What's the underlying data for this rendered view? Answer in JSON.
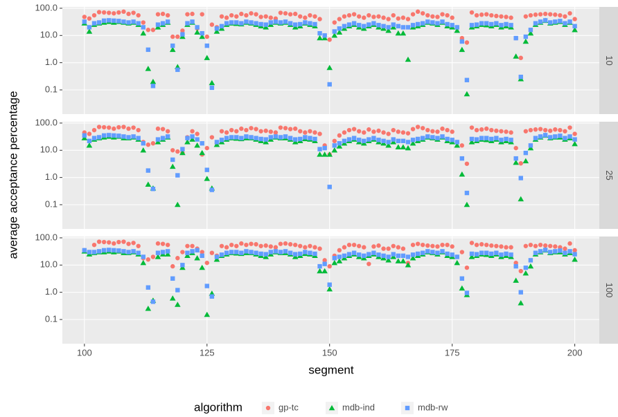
{
  "chart_data": {
    "type": "scatter",
    "xlabel": "segment",
    "ylabel": "average acceptance percentage",
    "legend_title": "algorithm",
    "legend_position": "bottom",
    "log_y": true,
    "grid": true,
    "x": [
      100,
      101,
      102,
      103,
      104,
      105,
      106,
      107,
      108,
      109,
      110,
      111,
      112,
      113,
      114,
      115,
      116,
      117,
      118,
      119,
      120,
      121,
      122,
      123,
      124,
      125,
      126,
      127,
      128,
      129,
      130,
      131,
      132,
      133,
      134,
      135,
      136,
      137,
      138,
      139,
      140,
      141,
      142,
      143,
      144,
      145,
      146,
      147,
      148,
      149,
      150,
      151,
      152,
      153,
      154,
      155,
      156,
      157,
      158,
      159,
      160,
      161,
      162,
      163,
      164,
      165,
      166,
      167,
      168,
      169,
      170,
      171,
      172,
      173,
      174,
      175,
      176,
      177,
      178,
      179,
      180,
      181,
      182,
      183,
      184,
      185,
      186,
      187,
      188,
      189,
      190,
      191,
      192,
      193,
      194,
      195,
      196,
      197,
      198,
      199,
      200
    ],
    "xlim": [
      95.5,
      205
    ],
    "xticks": [
      100,
      125,
      150,
      175,
      200
    ],
    "ylim": [
      0.0129,
      112
    ],
    "yticks": [
      0.1,
      {
        "value": 1,
        "label": "1.0"
      },
      {
        "value": 10,
        "label": "10.0"
      },
      {
        "value": 100,
        "label": "100.0"
      }
    ],
    "series": [
      {
        "name": "gp-tc",
        "color": "#F8766D",
        "marker": "circle"
      },
      {
        "name": "mdb-ind",
        "color": "#00BA38",
        "marker": "triangle"
      },
      {
        "name": "mdb-rw",
        "color": "#619CFF",
        "marker": "square"
      }
    ],
    "facets": [
      {
        "label": "10",
        "values": [
          [
            48,
            42,
            55,
            72,
            70,
            68,
            65,
            70,
            75,
            62,
            68,
            55,
            30,
            16,
            16,
            60,
            62,
            55,
            9,
            9,
            15,
            60,
            62,
            18,
            60,
            9,
            25,
            20,
            50,
            45,
            55,
            50,
            62,
            55,
            65,
            60,
            48,
            50,
            45,
            42,
            68,
            65,
            60,
            62,
            50,
            45,
            55,
            50,
            40,
            10,
            7,
            30,
            40,
            50,
            55,
            60,
            50,
            45,
            55,
            48,
            50,
            45,
            40,
            55,
            42,
            45,
            40,
            60,
            75,
            65,
            55,
            50,
            48,
            60,
            55,
            45,
            20,
            8,
            5.5,
            70,
            55,
            58,
            60,
            55,
            52,
            50,
            48,
            45,
            8,
            1.5,
            50,
            55,
            58,
            60,
            62,
            60,
            58,
            55,
            50,
            65,
            40
          ],
          [
            28,
            14,
            25,
            28,
            30,
            32,
            30,
            32,
            30,
            28,
            30,
            25,
            12,
            0.6,
            0.2,
            20,
            25,
            30,
            3,
            0.7,
            9,
            25,
            30,
            13,
            9,
            1.5,
            0.18,
            14,
            18,
            25,
            28,
            27,
            26,
            30,
            28,
            25,
            22,
            20,
            25,
            30,
            28,
            30,
            25,
            20,
            22,
            28,
            25,
            22,
            8,
            8,
            0.65,
            10,
            13,
            18,
            22,
            25,
            20,
            18,
            22,
            25,
            20,
            18,
            15,
            20,
            12,
            12,
            1.3,
            20,
            22,
            25,
            30,
            28,
            25,
            30,
            22,
            20,
            15,
            3,
            0.07,
            20,
            22,
            25,
            24,
            22,
            25,
            20,
            22,
            20,
            1.7,
            0.25,
            6,
            12,
            25,
            30,
            35,
            28,
            30,
            32,
            25,
            30,
            16
          ],
          [
            32,
            20,
            28,
            30,
            35,
            36,
            35,
            34,
            32,
            30,
            32,
            28,
            20,
            3,
            0.14,
            25,
            28,
            32,
            4.2,
            0.55,
            11,
            28,
            32,
            20,
            12,
            4.2,
            0.12,
            18,
            22,
            28,
            30,
            30,
            28,
            32,
            30,
            28,
            26,
            25,
            30,
            32,
            30,
            32,
            28,
            25,
            26,
            30,
            28,
            26,
            12,
            10,
            0.16,
            14,
            18,
            22,
            25,
            28,
            24,
            22,
            25,
            28,
            24,
            22,
            20,
            25,
            22,
            20,
            20,
            24,
            26,
            28,
            32,
            30,
            28,
            32,
            26,
            24,
            20,
            6,
            0.23,
            24,
            25,
            28,
            28,
            26,
            28,
            24,
            26,
            24,
            8,
            0.3,
            9,
            16,
            28,
            32,
            36,
            30,
            32,
            34,
            28,
            32,
            22
          ]
        ]
      },
      {
        "label": "25",
        "values": [
          [
            45,
            40,
            55,
            72,
            70,
            68,
            62,
            70,
            72,
            62,
            68,
            55,
            20,
            16,
            18,
            62,
            60,
            50,
            10,
            9,
            8,
            30,
            50,
            40,
            7,
            12,
            30,
            18,
            50,
            45,
            55,
            50,
            62,
            55,
            65,
            60,
            50,
            52,
            48,
            45,
            68,
            65,
            60,
            62,
            50,
            45,
            50,
            45,
            40,
            15,
            7,
            22,
            35,
            45,
            55,
            60,
            50,
            45,
            58,
            48,
            52,
            45,
            40,
            55,
            48,
            45,
            42,
            60,
            72,
            65,
            55,
            50,
            48,
            62,
            55,
            48,
            20,
            15,
            3.2,
            68,
            55,
            58,
            62,
            55,
            52,
            50,
            48,
            45,
            12,
            3.3,
            50,
            55,
            58,
            60,
            55,
            52,
            58,
            55,
            50,
            68,
            40
          ],
          [
            28,
            15,
            25,
            28,
            30,
            32,
            30,
            32,
            28,
            28,
            30,
            25,
            10,
            0.55,
            0.4,
            20,
            25,
            30,
            2.5,
            0.1,
            8,
            20,
            25,
            15,
            8,
            0.9,
            0.4,
            16,
            20,
            25,
            28,
            27,
            26,
            28,
            28,
            25,
            22,
            20,
            25,
            30,
            28,
            28,
            25,
            20,
            22,
            26,
            25,
            22,
            7,
            7,
            7,
            10,
            14,
            18,
            22,
            25,
            20,
            18,
            22,
            25,
            20,
            18,
            15,
            20,
            13,
            13,
            12,
            18,
            22,
            25,
            30,
            28,
            25,
            30,
            22,
            20,
            15,
            1.3,
            0.1,
            20,
            22,
            25,
            24,
            22,
            25,
            20,
            22,
            20,
            3.5,
            0.16,
            4,
            12,
            25,
            30,
            35,
            28,
            30,
            30,
            25,
            28,
            17
          ],
          [
            35,
            22,
            28,
            30,
            35,
            36,
            35,
            34,
            32,
            30,
            32,
            28,
            18,
            1.8,
            0.38,
            25,
            28,
            32,
            4.5,
            1.2,
            11,
            28,
            32,
            25,
            18,
            1.9,
            0.35,
            20,
            24,
            28,
            30,
            30,
            28,
            32,
            30,
            28,
            26,
            25,
            30,
            32,
            30,
            32,
            28,
            25,
            26,
            30,
            28,
            26,
            11,
            12,
            0.45,
            15,
            18,
            22,
            25,
            28,
            24,
            22,
            25,
            28,
            24,
            22,
            20,
            25,
            22,
            22,
            20,
            24,
            26,
            28,
            32,
            30,
            28,
            32,
            26,
            24,
            20,
            5,
            0.27,
            26,
            25,
            28,
            28,
            26,
            28,
            24,
            26,
            24,
            5,
            0.95,
            8,
            15,
            28,
            32,
            36,
            30,
            32,
            34,
            28,
            32,
            25
          ]
        ]
      },
      {
        "label": "100",
        "values": [
          [
            35,
            30,
            55,
            72,
            70,
            68,
            62,
            70,
            72,
            60,
            65,
            50,
            18,
            16,
            20,
            62,
            60,
            55,
            9,
            18,
            30,
            50,
            50,
            40,
            30,
            12,
            28,
            22,
            50,
            45,
            55,
            50,
            62,
            55,
            60,
            58,
            50,
            52,
            48,
            45,
            60,
            62,
            58,
            55,
            50,
            45,
            50,
            45,
            40,
            15,
            9,
            22,
            35,
            45,
            55,
            55,
            50,
            45,
            11,
            48,
            52,
            40,
            40,
            50,
            45,
            40,
            12,
            55,
            60,
            55,
            52,
            50,
            48,
            55,
            55,
            48,
            20,
            30,
            8,
            65,
            55,
            58,
            55,
            52,
            50,
            48,
            45,
            45,
            12,
            6,
            50,
            55,
            50,
            55,
            52,
            50,
            48,
            45,
            40,
            62,
            35
          ],
          [
            32,
            25,
            28,
            30,
            30,
            32,
            30,
            32,
            28,
            28,
            30,
            25,
            12,
            0.25,
            0.5,
            20,
            25,
            25,
            0.6,
            0.35,
            8,
            22,
            28,
            18,
            8,
            0.15,
            0.9,
            16,
            22,
            25,
            28,
            27,
            26,
            28,
            28,
            25,
            22,
            20,
            25,
            30,
            28,
            28,
            25,
            20,
            22,
            26,
            25,
            22,
            6,
            6,
            1.3,
            12,
            14,
            18,
            22,
            25,
            20,
            18,
            22,
            25,
            20,
            18,
            15,
            20,
            14,
            14,
            10,
            18,
            22,
            25,
            30,
            28,
            25,
            30,
            22,
            20,
            12,
            1.4,
            0.8,
            20,
            22,
            25,
            24,
            22,
            25,
            20,
            22,
            20,
            2.7,
            0.4,
            5,
            9,
            25,
            30,
            35,
            28,
            30,
            30,
            25,
            28,
            16
          ],
          [
            35,
            30,
            30,
            32,
            35,
            36,
            35,
            34,
            32,
            30,
            32,
            28,
            20,
            1.5,
            0.45,
            28,
            30,
            32,
            3.2,
            1.2,
            10,
            28,
            32,
            35,
            22,
            1.7,
            0.7,
            20,
            24,
            28,
            30,
            30,
            28,
            32,
            30,
            28,
            26,
            25,
            30,
            32,
            30,
            32,
            28,
            25,
            26,
            30,
            28,
            26,
            9,
            11,
            1.9,
            18,
            20,
            22,
            25,
            28,
            24,
            22,
            25,
            28,
            24,
            22,
            20,
            25,
            22,
            22,
            20,
            24,
            26,
            28,
            32,
            30,
            28,
            32,
            26,
            24,
            20,
            3.2,
            0.95,
            26,
            25,
            28,
            28,
            26,
            28,
            24,
            26,
            24,
            9,
            1,
            8,
            15,
            28,
            32,
            36,
            30,
            32,
            34,
            28,
            32,
            25
          ]
        ]
      }
    ]
  }
}
